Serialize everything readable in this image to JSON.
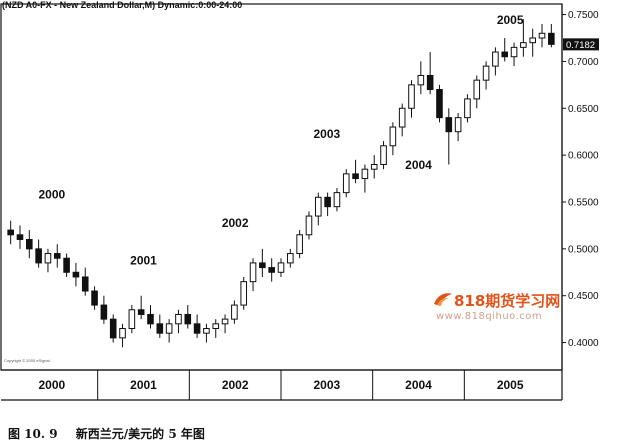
{
  "chart_data": {
    "type": "candlestick",
    "title": "(NZD A0-FX - New Zealand Dollar,M) Dynamic:0:00-24:00",
    "last_price_label": "0.7182",
    "last_price": 0.7182,
    "ylim": [
      0.375,
      0.757
    ],
    "y_ticks": [
      0.4,
      0.45,
      0.5,
      0.55,
      0.6,
      0.65,
      0.7,
      0.75
    ],
    "y_tick_labels": [
      "0.4000",
      "0.4500",
      "0.5000",
      "0.5500",
      "0.6000",
      "0.6500",
      "0.7000",
      "0.7500"
    ],
    "x_years": [
      "2000",
      "2001",
      "2002",
      "2003",
      "2004",
      "2005"
    ],
    "in_plot_year_labels": [
      "2000",
      "2001",
      "2002",
      "2003",
      "2004",
      "2005"
    ],
    "colors": {
      "up": "#ffffff",
      "down": "#111111",
      "line": "#111111",
      "price_box": "#111111"
    },
    "candles_note_omitted": "",
    "candles": [
      [
        0.52,
        0.53,
        0.505,
        0.515
      ],
      [
        0.515,
        0.525,
        0.5,
        0.51
      ],
      [
        0.51,
        0.52,
        0.49,
        0.5
      ],
      [
        0.5,
        0.51,
        0.48,
        0.485
      ],
      [
        0.485,
        0.5,
        0.475,
        0.495
      ],
      [
        0.495,
        0.505,
        0.48,
        0.49
      ],
      [
        0.49,
        0.495,
        0.47,
        0.475
      ],
      [
        0.475,
        0.485,
        0.46,
        0.47
      ],
      [
        0.47,
        0.48,
        0.45,
        0.455
      ],
      [
        0.455,
        0.46,
        0.435,
        0.44
      ],
      [
        0.44,
        0.45,
        0.42,
        0.425
      ],
      [
        0.425,
        0.43,
        0.4,
        0.405
      ],
      [
        0.405,
        0.42,
        0.395,
        0.415
      ],
      [
        0.415,
        0.44,
        0.41,
        0.435
      ],
      [
        0.435,
        0.45,
        0.425,
        0.43
      ],
      [
        0.43,
        0.44,
        0.415,
        0.42
      ],
      [
        0.42,
        0.43,
        0.405,
        0.41
      ],
      [
        0.41,
        0.425,
        0.4,
        0.42
      ],
      [
        0.42,
        0.435,
        0.41,
        0.43
      ],
      [
        0.43,
        0.44,
        0.415,
        0.42
      ],
      [
        0.42,
        0.43,
        0.405,
        0.41
      ],
      [
        0.41,
        0.42,
        0.4,
        0.415
      ],
      [
        0.415,
        0.425,
        0.405,
        0.42
      ],
      [
        0.42,
        0.43,
        0.41,
        0.425
      ],
      [
        0.425,
        0.445,
        0.42,
        0.44
      ],
      [
        0.44,
        0.47,
        0.435,
        0.465
      ],
      [
        0.465,
        0.49,
        0.455,
        0.485
      ],
      [
        0.485,
        0.5,
        0.47,
        0.48
      ],
      [
        0.48,
        0.49,
        0.465,
        0.475
      ],
      [
        0.475,
        0.49,
        0.47,
        0.485
      ],
      [
        0.485,
        0.5,
        0.48,
        0.495
      ],
      [
        0.495,
        0.52,
        0.49,
        0.515
      ],
      [
        0.515,
        0.54,
        0.51,
        0.535
      ],
      [
        0.535,
        0.56,
        0.525,
        0.555
      ],
      [
        0.555,
        0.56,
        0.535,
        0.545
      ],
      [
        0.545,
        0.565,
        0.54,
        0.56
      ],
      [
        0.56,
        0.585,
        0.555,
        0.58
      ],
      [
        0.58,
        0.595,
        0.57,
        0.575
      ],
      [
        0.575,
        0.59,
        0.56,
        0.585
      ],
      [
        0.585,
        0.6,
        0.575,
        0.59
      ],
      [
        0.59,
        0.615,
        0.585,
        0.61
      ],
      [
        0.61,
        0.635,
        0.6,
        0.63
      ],
      [
        0.63,
        0.655,
        0.62,
        0.65
      ],
      [
        0.65,
        0.68,
        0.64,
        0.675
      ],
      [
        0.675,
        0.7,
        0.665,
        0.685
      ],
      [
        0.685,
        0.71,
        0.665,
        0.67
      ],
      [
        0.67,
        0.675,
        0.635,
        0.64
      ],
      [
        0.64,
        0.65,
        0.59,
        0.625
      ],
      [
        0.625,
        0.645,
        0.615,
        0.64
      ],
      [
        0.64,
        0.665,
        0.635,
        0.66
      ],
      [
        0.66,
        0.685,
        0.65,
        0.68
      ],
      [
        0.68,
        0.7,
        0.67,
        0.695
      ],
      [
        0.695,
        0.715,
        0.685,
        0.71
      ],
      [
        0.71,
        0.725,
        0.7,
        0.705
      ],
      [
        0.705,
        0.72,
        0.695,
        0.715
      ],
      [
        0.715,
        0.745,
        0.705,
        0.72
      ],
      [
        0.72,
        0.735,
        0.705,
        0.725
      ],
      [
        0.725,
        0.74,
        0.715,
        0.73
      ],
      [
        0.73,
        0.74,
        0.715,
        0.7182
      ]
    ]
  },
  "figure_caption": {
    "number": "图 10. 9",
    "text": "新西兰元/美元的 5 年图"
  },
  "watermark": {
    "title": "818期货学习网",
    "url": "www.818qihuo.com"
  },
  "credit": "Copyright © 2005 eSignal"
}
